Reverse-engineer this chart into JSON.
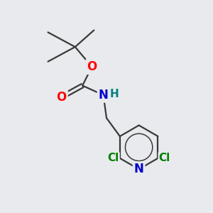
{
  "background_color": "#e8eaed",
  "bond_color": "#3a3a3a",
  "bond_width": 1.6,
  "atom_colors": {
    "O": "#ff0000",
    "N_ring": "#0000cc",
    "N_nh": "#0000cc",
    "Cl": "#008000",
    "H": "#008080",
    "C": "#3a3a3a"
  },
  "font_size_atoms": 12,
  "font_size_cl": 11,
  "font_size_h": 11
}
